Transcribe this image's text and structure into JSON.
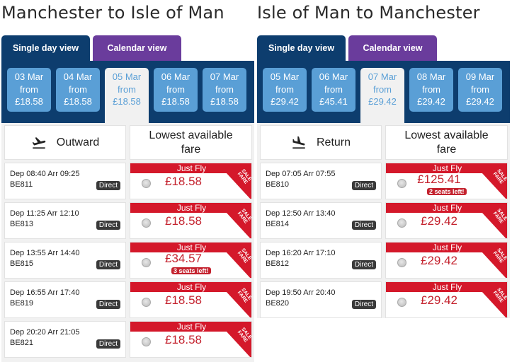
{
  "outbound": {
    "title": "Manchester to Isle of Man",
    "tabs": {
      "single": "Single day view",
      "calendar": "Calendar view"
    },
    "dates": [
      {
        "date": "03 Mar",
        "from": "from",
        "price": "£18.58",
        "selected": false
      },
      {
        "date": "04 Mar",
        "from": "from",
        "price": "£18.58",
        "selected": false
      },
      {
        "date": "05 Mar",
        "from": "from",
        "price": "£18.58",
        "selected": true
      },
      {
        "date": "06 Mar",
        "from": "from",
        "price": "£18.58",
        "selected": false
      },
      {
        "date": "07 Mar",
        "from": "from",
        "price": "£18.58",
        "selected": false
      }
    ],
    "direction_label": "Outward",
    "lowest_label": "Lowest available fare",
    "flights": [
      {
        "times": "Dep 08:40 Arr 09:25",
        "number": "BE811",
        "direct": "Direct",
        "fare_type": "Just Fly",
        "price": "£18.58",
        "seats": ""
      },
      {
        "times": "Dep 11:25 Arr 12:10",
        "number": "BE813",
        "direct": "Direct",
        "fare_type": "Just Fly",
        "price": "£18.58",
        "seats": ""
      },
      {
        "times": "Dep 13:55 Arr 14:40",
        "number": "BE815",
        "direct": "Direct",
        "fare_type": "Just Fly",
        "price": "£34.57",
        "seats": "3 seats left!"
      },
      {
        "times": "Dep 16:55 Arr 17:40",
        "number": "BE819",
        "direct": "Direct",
        "fare_type": "Just Fly",
        "price": "£18.58",
        "seats": ""
      },
      {
        "times": "Dep 20:20 Arr 21:05",
        "number": "BE821",
        "direct": "Direct",
        "fare_type": "Just Fly",
        "price": "£18.58",
        "seats": ""
      }
    ]
  },
  "return": {
    "title": "Isle of Man to Manchester",
    "tabs": {
      "single": "Single day view",
      "calendar": "Calendar view"
    },
    "dates": [
      {
        "date": "05 Mar",
        "from": "from",
        "price": "£29.42",
        "selected": false
      },
      {
        "date": "06 Mar",
        "from": "from",
        "price": "£45.41",
        "selected": false
      },
      {
        "date": "07 Mar",
        "from": "from",
        "price": "£29.42",
        "selected": true
      },
      {
        "date": "08 Mar",
        "from": "from",
        "price": "£29.42",
        "selected": false
      },
      {
        "date": "09 Mar",
        "from": "from",
        "price": "£29.42",
        "selected": false
      }
    ],
    "direction_label": "Return",
    "lowest_label": "Lowest available fare",
    "flights": [
      {
        "times": "Dep 07:05 Arr 07:55",
        "number": "BE810",
        "direct": "Direct",
        "fare_type": "Just Fly",
        "price": "£125.41",
        "seats": "2 seats left!"
      },
      {
        "times": "Dep 12:50 Arr 13:40",
        "number": "BE814",
        "direct": "Direct",
        "fare_type": "Just Fly",
        "price": "£29.42",
        "seats": ""
      },
      {
        "times": "Dep 16:20 Arr 17:10",
        "number": "BE812",
        "direct": "Direct",
        "fare_type": "Just Fly",
        "price": "£29.42",
        "seats": ""
      },
      {
        "times": "Dep 19:50 Arr 20:40",
        "number": "BE820",
        "direct": "Direct",
        "fare_type": "Just Fly",
        "price": "£29.42",
        "seats": ""
      }
    ]
  },
  "sale_badge": "SALE FARE",
  "icons": {
    "takeoff": "plane-takeoff-icon",
    "landing": "plane-landing-icon"
  },
  "colors": {
    "navy": "#0d3d6e",
    "purple": "#6a3c9c",
    "date_blue": "#5a9fd6",
    "fare_red": "#d4182a",
    "price_red": "#c4222e"
  }
}
